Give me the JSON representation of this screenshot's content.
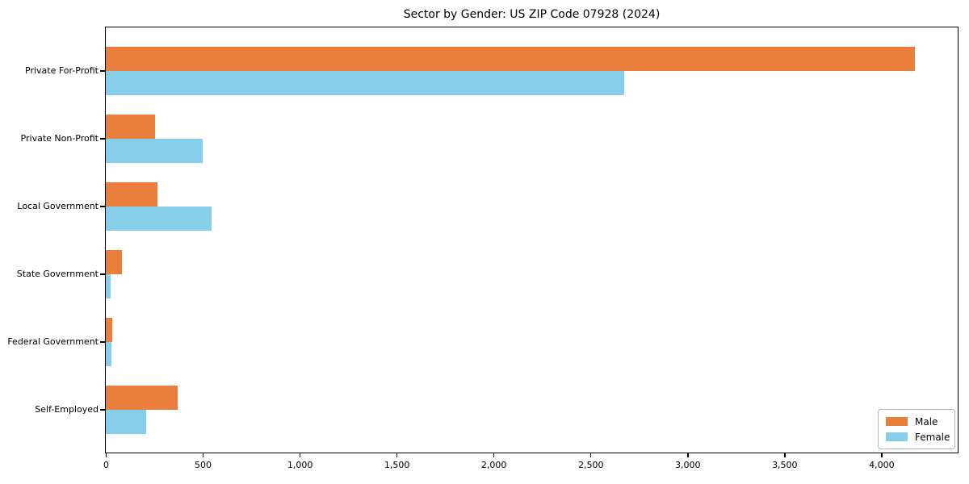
{
  "chart": {
    "title": "Sector by Gender: US ZIP Code 07928 (2024)",
    "colors": {
      "male": "#e97e3d",
      "female": "#87ceeb",
      "spine": "#000000",
      "text": "#000000",
      "legend_border": "#b4b4b4",
      "background": "#ffffff"
    },
    "legend": {
      "position": "lower right",
      "items": [
        {
          "label": "Male",
          "color": "#e97e3d"
        },
        {
          "label": "Female",
          "color": "#87ceeb"
        }
      ]
    }
  },
  "chart_data": {
    "type": "bar",
    "orientation": "horizontal",
    "title": "Sector by Gender: US ZIP Code 07928 (2024)",
    "categories": [
      "Private For-Profit",
      "Private Non-Profit",
      "Local Government",
      "State Government",
      "Federal Government",
      "Self-Employed"
    ],
    "series": [
      {
        "name": "Male",
        "color": "#e97e3d",
        "values": [
          4175,
          255,
          265,
          85,
          35,
          370
        ]
      },
      {
        "name": "Female",
        "color": "#87ceeb",
        "values": [
          2675,
          500,
          545,
          25,
          30,
          210
        ]
      }
    ],
    "xlabel": "",
    "ylabel": "",
    "xlim": [
      0,
      4390
    ],
    "xticks": [
      0,
      500,
      1000,
      1500,
      2000,
      2500,
      3000,
      3500,
      4000
    ],
    "xtick_labels": [
      "0",
      "500",
      "1,000",
      "1,500",
      "2,000",
      "2,500",
      "3,000",
      "3,500",
      "4,000"
    ],
    "grid": false,
    "legend_position": "lower right"
  }
}
